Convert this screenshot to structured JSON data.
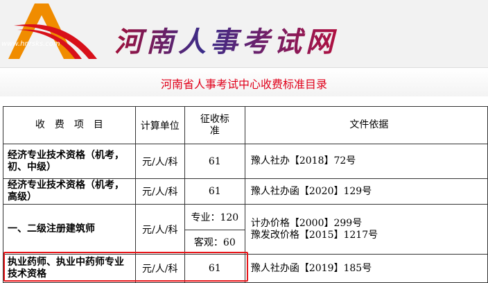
{
  "header": {
    "site_title": "河南人事考试网",
    "logo_text": "www.hnrsks.com"
  },
  "page_title": "河南省人事考试中心收费标准目录",
  "table": {
    "headers": [
      "收　费　项　目",
      "计算单位",
      "征收标准",
      "文件依据"
    ],
    "rows": [
      {
        "item": "经济专业技术资格（机考，初、中级）",
        "unit": "元/人/科",
        "fee": "61",
        "basis": "豫人社办【2018】72号"
      },
      {
        "item": "经济专业技术资格（机考，高级）",
        "unit": "元/人/科",
        "fee": "61",
        "basis": "豫人社办函【2020】129号"
      },
      {
        "item": "一、二级注册建筑师",
        "unit": "元/人/科",
        "fee_a": "专业：120",
        "fee_b": "客观：60",
        "basis_a": "计办价格【2000】299号",
        "basis_b": "豫发改价格【2015】1217号"
      },
      {
        "item": "执业药师、执业中药师专业技术资格",
        "unit": "元/人/科",
        "fee": "61",
        "basis": "豫人社办函【2019】185号"
      }
    ]
  },
  "colors": {
    "title": "#e0001a",
    "highlight": "#e8161a",
    "logo_orange": "#f08c00",
    "logo_red": "#d8101a"
  }
}
